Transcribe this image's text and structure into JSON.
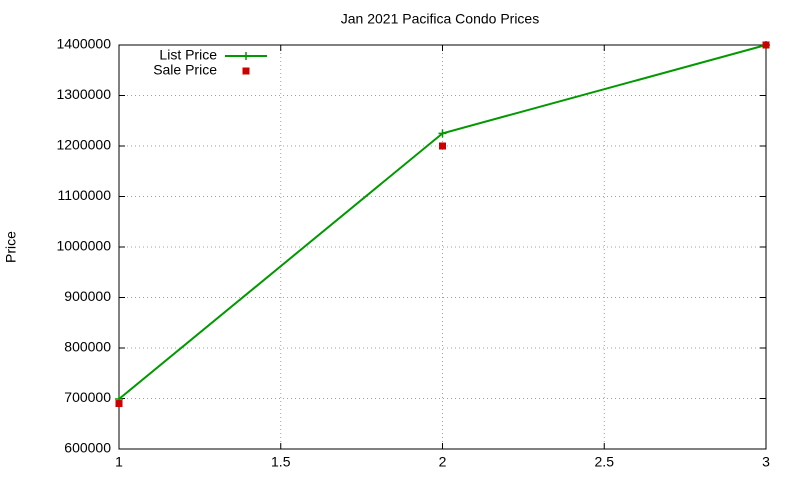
{
  "chart_data": {
    "type": "line",
    "title": "Jan 2021 Pacifica Condo Prices",
    "y_label": "Price",
    "x": [
      1,
      2,
      3
    ],
    "series": [
      {
        "name": "List Price",
        "color": "#009900",
        "mode": "lines+markers",
        "marker": "plus",
        "values": [
          699000,
          1225000,
          1400000
        ]
      },
      {
        "name": "Sale Price",
        "color": "#cc0000",
        "mode": "markers",
        "marker": "square",
        "values": [
          690000,
          1200000,
          1400000
        ]
      }
    ],
    "xlim": [
      1,
      3
    ],
    "xticks": [
      1,
      1.5,
      2,
      2.5,
      3
    ],
    "ylim": [
      600000,
      1400000
    ],
    "yticks": [
      600000,
      700000,
      800000,
      900000,
      1000000,
      1100000,
      1200000,
      1300000,
      1400000
    ],
    "grid": true,
    "legend": "top-left"
  }
}
